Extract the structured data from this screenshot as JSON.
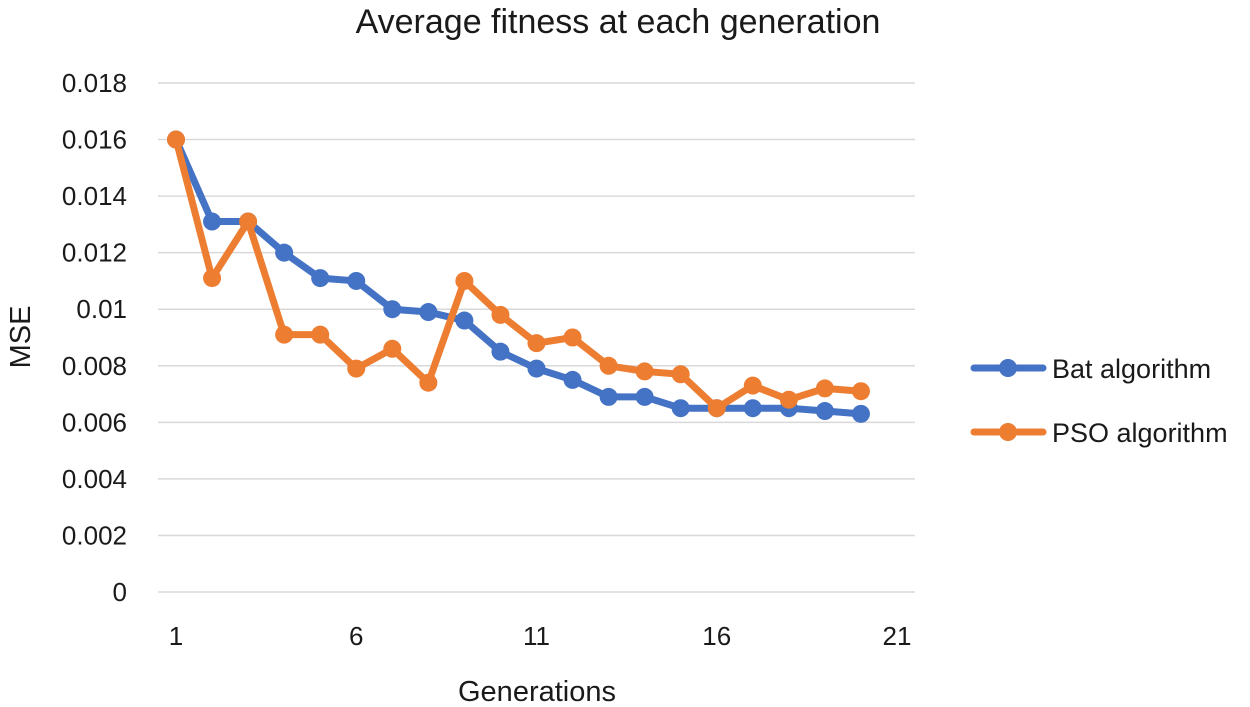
{
  "chart_data": {
    "type": "line",
    "title": "Average fitness at each generation",
    "xlabel": "Generations",
    "ylabel": "MSE",
    "x": [
      1,
      2,
      3,
      4,
      5,
      6,
      7,
      8,
      9,
      10,
      11,
      12,
      13,
      14,
      15,
      16,
      17,
      18,
      19,
      20
    ],
    "xlim": [
      1,
      21
    ],
    "xticks": [
      1,
      6,
      11,
      16,
      21
    ],
    "xtick_labels": [
      "1",
      "6",
      "11",
      "16",
      "21"
    ],
    "ylim": [
      0,
      0.018
    ],
    "yticks": [
      0,
      0.002,
      0.004,
      0.006,
      0.008,
      0.01,
      0.012,
      0.014,
      0.016,
      0.018
    ],
    "ytick_labels": [
      "0",
      "0.002",
      "0.004",
      "0.006",
      "0.008",
      "0.01",
      "0.012",
      "0.014",
      "0.016",
      "0.018"
    ],
    "grid": "horizontal",
    "legend_position": "right",
    "series": [
      {
        "name": "Bat algorithm",
        "color": "#4472c4",
        "values": [
          0.016,
          0.0131,
          0.0131,
          0.012,
          0.0111,
          0.011,
          0.01,
          0.0099,
          0.0096,
          0.0085,
          0.0079,
          0.0075,
          0.0069,
          0.0069,
          0.0065,
          0.0065,
          0.0065,
          0.0065,
          0.0064,
          0.0063
        ]
      },
      {
        "name": "PSO algorithm",
        "color": "#ed7d31",
        "values": [
          0.016,
          0.0111,
          0.0131,
          0.0091,
          0.0091,
          0.0079,
          0.0086,
          0.0074,
          0.011,
          0.0098,
          0.0088,
          0.009,
          0.008,
          0.0078,
          0.0077,
          0.0065,
          0.0073,
          0.0068,
          0.0072,
          0.0071
        ]
      }
    ]
  }
}
